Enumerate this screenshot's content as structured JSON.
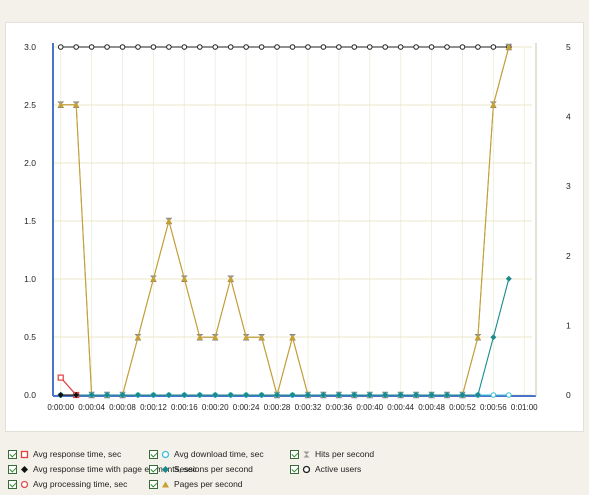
{
  "chart_data": {
    "type": "line",
    "x": [
      "0:00:00",
      "0:00:02",
      "0:00:04",
      "0:00:06",
      "0:00:08",
      "0:00:10",
      "0:00:12",
      "0:00:14",
      "0:00:16",
      "0:00:18",
      "0:00:20",
      "0:00:22",
      "0:00:24",
      "0:00:26",
      "0:00:28",
      "0:00:30",
      "0:00:32",
      "0:00:34",
      "0:00:36",
      "0:00:38",
      "0:00:40",
      "0:00:42",
      "0:00:44",
      "0:00:46",
      "0:00:48",
      "0:00:50",
      "0:00:52",
      "0:00:54",
      "0:00:56",
      "0:00:58"
    ],
    "x_ticks": [
      "0:00:00",
      "0:00:04",
      "0:00:08",
      "0:00:12",
      "0:00:16",
      "0:00:20",
      "0:00:24",
      "0:00:28",
      "0:00:32",
      "0:00:36",
      "0:00:40",
      "0:00:44",
      "0:00:48",
      "0:00:52",
      "0:00:56",
      "0:01:00"
    ],
    "x_tick_values": [
      0,
      4,
      8,
      12,
      16,
      20,
      24,
      28,
      32,
      36,
      40,
      44,
      48,
      52,
      56,
      60
    ],
    "x_values": [
      0,
      2,
      4,
      6,
      8,
      10,
      12,
      14,
      16,
      18,
      20,
      22,
      24,
      26,
      28,
      30,
      32,
      34,
      36,
      38,
      40,
      42,
      44,
      46,
      48,
      50,
      52,
      54,
      56,
      58
    ],
    "xlim": [
      -1,
      61
    ],
    "y_left_ticks": [
      "0.0",
      "0.5",
      "1.0",
      "1.5",
      "2.0",
      "2.5",
      "3.0"
    ],
    "y_left_lim": [
      0,
      3
    ],
    "y_right_ticks": [
      "0",
      "1",
      "2",
      "3",
      "4",
      "5"
    ],
    "y_right_lim": [
      0,
      5
    ],
    "grid": true,
    "legend_position": "bottom",
    "series": [
      {
        "name": "Avg response time, sec",
        "axis": "left",
        "color": "#e04040",
        "marker": "square",
        "values": [
          0.15,
          0.0,
          null,
          null,
          null,
          null,
          null,
          null,
          null,
          null,
          null,
          null,
          null,
          null,
          null,
          null,
          null,
          null,
          null,
          null,
          null,
          null,
          null,
          null,
          null,
          null,
          null,
          null,
          null,
          null
        ]
      },
      {
        "name": "Avg response time with page elements, sec",
        "axis": "left",
        "color": "#111111",
        "marker": "diamond",
        "values": [
          0.0,
          0.0,
          null,
          null,
          null,
          null,
          null,
          null,
          null,
          null,
          null,
          null,
          null,
          null,
          null,
          null,
          null,
          null,
          null,
          null,
          null,
          null,
          null,
          null,
          null,
          null,
          null,
          null,
          null,
          null
        ]
      },
      {
        "name": "Avg processing time, sec",
        "axis": "left",
        "color": "#e05050",
        "marker": "circle",
        "values": [
          0.15,
          0.0,
          null,
          null,
          null,
          null,
          null,
          null,
          null,
          null,
          null,
          null,
          null,
          null,
          null,
          null,
          null,
          null,
          null,
          null,
          null,
          null,
          null,
          null,
          null,
          null,
          null,
          null,
          null,
          null
        ]
      },
      {
        "name": "Avg download time, sec",
        "axis": "left",
        "color": "#3fbfd8",
        "marker": "circle",
        "values": [
          0,
          0,
          0,
          0,
          0,
          0,
          0,
          0,
          0,
          0,
          0,
          0,
          0,
          0,
          0,
          0,
          0,
          0,
          0,
          0,
          0,
          0,
          0,
          0,
          0,
          0,
          0,
          0,
          0,
          0
        ]
      },
      {
        "name": "Sessions per second",
        "axis": "right",
        "color": "#1a8a8a",
        "marker": "diamond",
        "values": [
          0,
          0,
          0,
          0,
          0,
          0,
          0,
          0,
          0,
          0,
          0,
          0,
          0,
          0,
          0,
          0,
          0,
          0,
          0,
          0,
          0,
          0,
          0,
          0,
          0,
          0,
          0,
          0,
          0.83,
          1.67
        ]
      },
      {
        "name": "Pages per second",
        "axis": "right",
        "color": "#c8a030",
        "marker": "triangle",
        "values": [
          4.17,
          4.17,
          0,
          0,
          0,
          0.83,
          1.67,
          2.5,
          1.67,
          0.83,
          0.83,
          1.67,
          0.83,
          0.83,
          0,
          0.83,
          0,
          0,
          0,
          0,
          0,
          0,
          0,
          0,
          0,
          0,
          0,
          0.83,
          4.17,
          5
        ]
      },
      {
        "name": "Hits per second",
        "axis": "right",
        "color": "#999999",
        "marker": "hourglass",
        "values": [
          4.17,
          4.17,
          0,
          0,
          0,
          0.83,
          1.67,
          2.5,
          1.67,
          0.83,
          0.83,
          1.67,
          0.83,
          0.83,
          0,
          0.83,
          0,
          0,
          0,
          0,
          0,
          0,
          0,
          0,
          0,
          0,
          0,
          0.83,
          4.17,
          5
        ]
      },
      {
        "name": "Active users",
        "axis": "right",
        "color": "#222222",
        "marker": "circle",
        "values": [
          5,
          5,
          5,
          5,
          5,
          5,
          5,
          5,
          5,
          5,
          5,
          5,
          5,
          5,
          5,
          5,
          5,
          5,
          5,
          5,
          5,
          5,
          5,
          5,
          5,
          5,
          5,
          5,
          5,
          5
        ]
      }
    ]
  },
  "legend": [
    {
      "label": "Avg response time, sec",
      "color": "#e04040",
      "symbol": "square"
    },
    {
      "label": "Avg response time with page elements, sec",
      "color": "#111111",
      "symbol": "diamond"
    },
    {
      "label": "Avg processing time, sec",
      "color": "#e05050",
      "symbol": "circle"
    },
    {
      "label": "Avg download time, sec",
      "color": "#3fbfd8",
      "symbol": "circle"
    },
    {
      "label": "Sessions per second",
      "color": "#1a8a8a",
      "symbol": "diamond"
    },
    {
      "label": "Pages per second",
      "color": "#c8a030",
      "symbol": "triangle"
    },
    {
      "label": "Hits per second",
      "color": "#999999",
      "symbol": "hourglass"
    },
    {
      "label": "Active users",
      "color": "#222222",
      "symbol": "circle"
    }
  ]
}
